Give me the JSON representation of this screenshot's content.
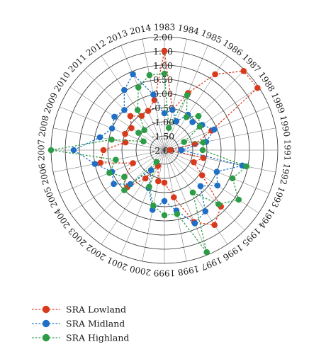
{
  "chart_data": {
    "type": "radar",
    "title": "",
    "categories": [
      "1983",
      "1984",
      "1985",
      "1986",
      "1987",
      "1988",
      "1989",
      "1990",
      "1991",
      "1992",
      "1993",
      "1994",
      "1995",
      "1996",
      "1997",
      "1998",
      "1999",
      "2000",
      "2001",
      "2002",
      "2003",
      "2004",
      "2005",
      "2006",
      "2007",
      "2008",
      "2009",
      "2010",
      "2011",
      "2012",
      "2013",
      "2014"
    ],
    "radial_ticks": [
      "-2.00",
      "-1.50",
      "-1.00",
      "-0.50",
      "0.00",
      "0.50",
      "1.00",
      "1.50",
      "2.00"
    ],
    "rlim": [
      -2.0,
      2.0
    ],
    "grid": true,
    "legend_position": "bottom-left",
    "series": [
      {
        "name": "SRA Lowland",
        "color": "#d93a1c",
        "values": [
          1.5,
          -0.55,
          0.18,
          1.22,
          1.95,
          1.95,
          -0.2,
          -0.9,
          -1.8,
          -0.6,
          -0.88,
          -0.4,
          0.82,
          1.18,
          0.75,
          -0.3,
          -0.85,
          -0.88,
          -1.4,
          -0.8,
          -0.15,
          -0.3,
          -0.8,
          0.3,
          0.15,
          -0.6,
          -0.5,
          -0.6,
          -0.3,
          -0.55,
          -0.5,
          -0.2
        ]
      },
      {
        "name": "SRA Midland",
        "color": "#1f6fc7",
        "values": [
          -0.7,
          -0.55,
          -0.9,
          -0.5,
          -0.6,
          -0.4,
          -0.1,
          -0.5,
          -1.4,
          0.8,
          0.0,
          0.25,
          -0.2,
          0.6,
          0.8,
          0.18,
          -0.2,
          0.15,
          -0.55,
          -1.15,
          -0.3,
          0.15,
          0.0,
          0.5,
          1.2,
          0.32,
          0.0,
          0.12,
          0.0,
          0.55,
          0.9,
          0.0
        ]
      },
      {
        "name": "SRA Highland",
        "color": "#2c9c47",
        "values": [
          0.7,
          -1.2,
          0.1,
          -0.6,
          -0.3,
          -0.5,
          -1.25,
          -0.6,
          -0.65,
          0.95,
          0.6,
          1.15,
          0.7,
          -0.2,
          1.9,
          0.3,
          0.3,
          0.0,
          -0.6,
          -1.5,
          0.0,
          -0.3,
          0.1,
          -0.25,
          2.0,
          -0.1,
          -1.2,
          -0.9,
          -1.0,
          -0.3,
          0.4,
          0.7
        ]
      }
    ]
  }
}
